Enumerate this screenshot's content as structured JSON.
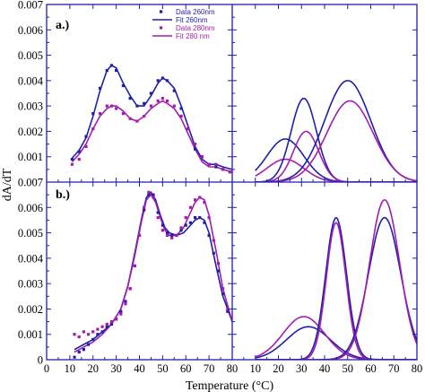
{
  "colors": {
    "blue": "#1f1fa8",
    "purple": "#a21caf",
    "frame": "#1f1fa8"
  },
  "chart_data": [
    {
      "panel": "a.)",
      "type": "line",
      "side": "left",
      "xlim": [
        0,
        80
      ],
      "ylim": [
        0.0,
        0.007
      ],
      "legend": [
        "Data 260nm",
        "Fit 260nm",
        "Data 280nm",
        "Fit 280 nm"
      ],
      "series": [
        {
          "name": "Fit 260nm",
          "color": "#1f1fa8",
          "x": [
            11,
            14,
            17,
            20,
            23,
            26,
            28,
            30,
            33,
            36,
            39,
            42,
            45,
            48,
            50,
            52,
            55,
            58,
            61,
            64,
            67,
            70,
            73,
            76,
            80
          ],
          "values": [
            0.00095,
            0.00125,
            0.00175,
            0.0026,
            0.0036,
            0.0044,
            0.0046,
            0.0045,
            0.0039,
            0.0034,
            0.003,
            0.003,
            0.0034,
            0.0039,
            0.0041,
            0.004,
            0.0037,
            0.003,
            0.0022,
            0.0014,
            0.0009,
            0.0007,
            0.0007,
            0.0006,
            0.0005
          ]
        },
        {
          "name": "Fit 280 nm",
          "color": "#a21caf",
          "x": [
            11,
            14,
            17,
            20,
            23,
            26,
            28,
            30,
            33,
            36,
            39,
            42,
            45,
            48,
            50,
            52,
            55,
            58,
            61,
            64,
            67,
            70,
            73,
            76,
            80
          ],
          "values": [
            0.0008,
            0.0011,
            0.0015,
            0.0021,
            0.0026,
            0.0029,
            0.003,
            0.003,
            0.0028,
            0.0025,
            0.0024,
            0.0026,
            0.0029,
            0.0031,
            0.0032,
            0.0031,
            0.0029,
            0.0025,
            0.0019,
            0.0013,
            0.0008,
            0.0006,
            0.0006,
            0.0005,
            0.0004
          ]
        },
        {
          "name": "Data 260nm",
          "color": "#1f1fa8",
          "marker": true,
          "x": [
            11,
            14,
            17,
            20,
            23,
            26,
            28,
            30,
            33,
            36,
            39,
            42,
            45,
            48,
            50,
            52,
            55,
            58,
            61,
            64,
            67,
            70,
            73,
            76,
            79
          ],
          "values": [
            0.0009,
            0.0012,
            0.0018,
            0.0027,
            0.0037,
            0.0044,
            0.0046,
            0.0044,
            0.0038,
            0.0033,
            0.003,
            0.0031,
            0.0035,
            0.004,
            0.0041,
            0.004,
            0.0036,
            0.0029,
            0.0021,
            0.0013,
            0.001,
            0.0007,
            0.0006,
            0.0005,
            0.0004
          ]
        },
        {
          "name": "Data 280nm",
          "color": "#a21caf",
          "marker": true,
          "x": [
            11,
            14,
            17,
            20,
            23,
            26,
            28,
            30,
            33,
            36,
            39,
            42,
            45,
            48,
            50,
            52,
            55,
            58,
            61,
            64,
            67,
            70,
            73,
            76,
            79
          ],
          "values": [
            0.0007,
            0.0009,
            0.0014,
            0.0021,
            0.0027,
            0.003,
            0.003,
            0.0029,
            0.0027,
            0.0025,
            0.0024,
            0.0026,
            0.003,
            0.0032,
            0.0033,
            0.0032,
            0.003,
            0.0026,
            0.0021,
            0.0015,
            0.001,
            0.0007,
            0.0007,
            0.0005,
            0.0004
          ]
        }
      ]
    },
    {
      "panel": "",
      "type": "line",
      "side": "right",
      "xlim": [
        0,
        80
      ],
      "ylim": [
        0.0,
        0.007
      ],
      "series": [
        {
          "color": "#1f1fa8",
          "gauss": [
            0.0017,
            23,
            8
          ]
        },
        {
          "color": "#a21caf",
          "gauss": [
            0.0009,
            23,
            8
          ]
        },
        {
          "color": "#1f1fa8",
          "gauss": [
            0.0033,
            31,
            5.5
          ]
        },
        {
          "color": "#a21caf",
          "gauss": [
            0.002,
            32,
            5.5
          ]
        },
        {
          "color": "#1f1fa8",
          "gauss": [
            0.004,
            50,
            10
          ]
        },
        {
          "color": "#a21caf",
          "gauss": [
            0.0032,
            51,
            10
          ]
        }
      ]
    },
    {
      "panel": "b.)",
      "type": "line",
      "side": "left",
      "xlim": [
        0,
        80
      ],
      "ylim": [
        0.0,
        0.007
      ],
      "series": [
        {
          "color": "#1f1fa8",
          "x": [
            12,
            16,
            20,
            24,
            28,
            32,
            35,
            38,
            41,
            43,
            45,
            47,
            49,
            51,
            53,
            56,
            59,
            62,
            64,
            66,
            68,
            70,
            73,
            76,
            80
          ],
          "values": [
            0.0004,
            0.0006,
            0.0008,
            0.0011,
            0.0014,
            0.002,
            0.0029,
            0.0042,
            0.0056,
            0.0064,
            0.0066,
            0.0063,
            0.0057,
            0.0052,
            0.005,
            0.0049,
            0.005,
            0.0053,
            0.0055,
            0.0056,
            0.0055,
            0.005,
            0.0037,
            0.0025,
            0.0015
          ]
        },
        {
          "color": "#a21caf",
          "x": [
            12,
            16,
            20,
            24,
            28,
            32,
            35,
            38,
            41,
            43,
            45,
            47,
            49,
            51,
            53,
            56,
            59,
            62,
            64,
            66,
            68,
            70,
            73,
            76,
            80
          ],
          "values": [
            0.0003,
            0.0005,
            0.0007,
            0.001,
            0.0014,
            0.002,
            0.0029,
            0.0041,
            0.0055,
            0.0063,
            0.0065,
            0.0062,
            0.0056,
            0.0051,
            0.0049,
            0.0049,
            0.0052,
            0.0058,
            0.0062,
            0.0064,
            0.0063,
            0.0057,
            0.0043,
            0.0028,
            0.0015
          ]
        },
        {
          "color": "#1f1fa8",
          "marker": true,
          "x": [
            12,
            14,
            16,
            18,
            20,
            22,
            24,
            26,
            28,
            30,
            32,
            34,
            36,
            38,
            40,
            42,
            44,
            46,
            48,
            50,
            52,
            54,
            56,
            58,
            60,
            62,
            64,
            66,
            68,
            70,
            72,
            74,
            76,
            78
          ],
          "values": [
            0.0001,
            0.0003,
            0.0004,
            0.0006,
            0.0008,
            0.001,
            0.0011,
            0.0013,
            0.0014,
            0.0016,
            0.0019,
            0.0023,
            0.0028,
            0.0037,
            0.0049,
            0.0059,
            0.0065,
            0.0065,
            0.0058,
            0.0053,
            0.005,
            0.0049,
            0.0049,
            0.0051,
            0.0053,
            0.0054,
            0.0056,
            0.0056,
            0.0054,
            0.0049,
            0.0042,
            0.0035,
            0.0026,
            0.0019
          ]
        },
        {
          "color": "#a21caf",
          "marker": true,
          "x": [
            12,
            14,
            16,
            18,
            20,
            22,
            24,
            26,
            28,
            30,
            32,
            34,
            36,
            38,
            40,
            42,
            44,
            46,
            48,
            50,
            52,
            54,
            56,
            58,
            60,
            62,
            64,
            66,
            68,
            70,
            72,
            74,
            76,
            78
          ],
          "values": [
            0.001,
            0.0009,
            0.0011,
            0.001,
            0.0011,
            0.0012,
            0.0013,
            0.0014,
            0.0015,
            0.0016,
            0.0018,
            0.0022,
            0.0028,
            0.0037,
            0.0049,
            0.006,
            0.0066,
            0.0064,
            0.0056,
            0.0051,
            0.0049,
            0.0048,
            0.0049,
            0.0052,
            0.0056,
            0.006,
            0.0063,
            0.0064,
            0.0062,
            0.0056,
            0.0047,
            0.0038,
            0.0028,
            0.002
          ]
        }
      ]
    },
    {
      "panel": "",
      "type": "line",
      "side": "right",
      "xlim": [
        0,
        80
      ],
      "ylim": [
        0.0,
        0.007
      ],
      "series": [
        {
          "color": "#1f1fa8",
          "gauss": [
            0.0013,
            33,
            9.5
          ]
        },
        {
          "color": "#a21caf",
          "gauss": [
            0.0017,
            31,
            9
          ]
        },
        {
          "color": "#1f1fa8",
          "gauss": [
            0.0056,
            45,
            4.5
          ]
        },
        {
          "color": "#a21caf",
          "gauss": [
            0.0054,
            45,
            4.2
          ]
        },
        {
          "color": "#1f1fa8",
          "gauss": [
            0.0056,
            66,
            7
          ]
        },
        {
          "color": "#a21caf",
          "gauss": [
            0.0063,
            66,
            6.5
          ]
        }
      ]
    }
  ],
  "axes": {
    "y_ticks_top": [
      "0.001",
      "0.002",
      "0.003",
      "0.004",
      "0.005",
      "0.006",
      "0.007"
    ],
    "y_ticks_bottom": [
      "0",
      "0.001",
      "0.002",
      "0.003",
      "0.004",
      "0.005",
      "0.006",
      "0.007"
    ],
    "x_ticks_left": [
      "0",
      "10",
      "20",
      "30",
      "40",
      "50",
      "60",
      "70",
      "80"
    ],
    "x_ticks_right": [
      "10",
      "20",
      "30",
      "40",
      "50",
      "60",
      "70",
      "80"
    ],
    "ylabel": "dA/dT",
    "xlabel": "Temperature (°C)"
  }
}
